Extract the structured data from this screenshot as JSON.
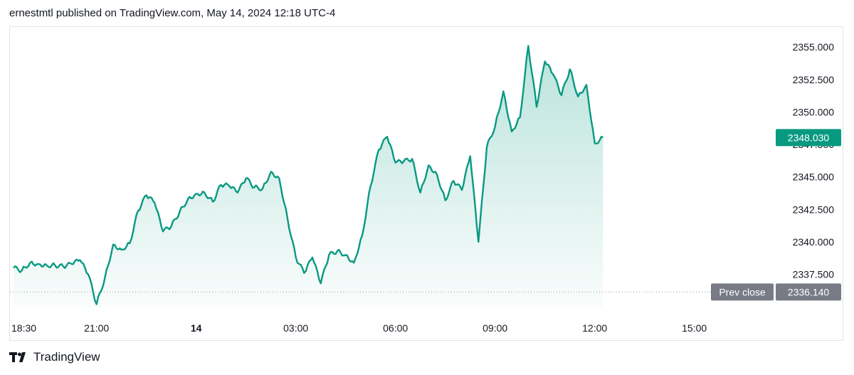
{
  "header": {
    "publisher_text": "ernestmtl published on TradingView.com, May 14, 2024 12:18 UTC-4"
  },
  "footer": {
    "brand_label": "TradingView"
  },
  "colors": {
    "line": "#089981",
    "fill_top": "#089981",
    "price_badge_bg": "#089981",
    "prev_close_bg": "#787b86",
    "grid_dotted": "#9598a1"
  },
  "chart_data": {
    "type": "area",
    "title": "",
    "xlabel": "",
    "ylabel": "",
    "x_ticks": [
      "18:30",
      "21:00",
      "14",
      "03:00",
      "06:00",
      "09:00",
      "12:00",
      "15:00"
    ],
    "y_ticks": [
      "2355.000",
      "2352.500",
      "2350.000",
      "2347.500",
      "2345.000",
      "2342.500",
      "2340.000",
      "2337.500"
    ],
    "ylim": [
      2334.9,
      2356.0
    ],
    "last_price": {
      "label": "2348.030",
      "value": 2348.03
    },
    "prev_close": {
      "label": "Prev close",
      "value_label": "2336.140",
      "value": 2336.14
    },
    "grid": false,
    "series": [
      {
        "points": [
          [
            "18:30",
            2338.0
          ],
          [
            "18:45",
            2337.8
          ],
          [
            "19:00",
            2338.4
          ],
          [
            "19:15",
            2338.3
          ],
          [
            "19:30",
            2338.2
          ],
          [
            "19:45",
            2338.2
          ],
          [
            "20:00",
            2338.1
          ],
          [
            "20:15",
            2338.3
          ],
          [
            "20:30",
            2338.6
          ],
          [
            "20:45",
            2337.5
          ],
          [
            "21:00",
            2335.2
          ],
          [
            "21:15",
            2337.2
          ],
          [
            "21:30",
            2339.8
          ],
          [
            "21:45",
            2339.4
          ],
          [
            "22:00",
            2339.9
          ],
          [
            "22:15",
            2342.4
          ],
          [
            "22:30",
            2343.6
          ],
          [
            "22:45",
            2343.0
          ],
          [
            "23:00",
            2340.8
          ],
          [
            "23:15",
            2341.2
          ],
          [
            "23:30",
            2342.3
          ],
          [
            "23:45",
            2343.3
          ],
          [
            "00:00",
            2343.7
          ],
          [
            "00:15",
            2343.8
          ],
          [
            "00:30",
            2343.1
          ],
          [
            "00:45",
            2344.4
          ],
          [
            "01:00",
            2344.3
          ],
          [
            "01:15",
            2343.8
          ],
          [
            "01:30",
            2344.9
          ],
          [
            "01:45",
            2344.2
          ],
          [
            "02:00",
            2344.1
          ],
          [
            "02:15",
            2345.4
          ],
          [
            "02:30",
            2344.9
          ],
          [
            "02:45",
            2341.8
          ],
          [
            "03:00",
            2338.8
          ],
          [
            "03:15",
            2337.6
          ],
          [
            "03:30",
            2338.8
          ],
          [
            "03:45",
            2336.8
          ],
          [
            "04:00",
            2339.0
          ],
          [
            "04:15",
            2339.3
          ],
          [
            "04:30",
            2339.0
          ],
          [
            "04:45",
            2338.4
          ],
          [
            "05:00",
            2340.5
          ],
          [
            "05:15",
            2344.3
          ],
          [
            "05:30",
            2347.1
          ],
          [
            "05:45",
            2348.1
          ],
          [
            "06:00",
            2346.1
          ],
          [
            "06:15",
            2346.2
          ],
          [
            "06:30",
            2346.4
          ],
          [
            "06:45",
            2343.8
          ],
          [
            "07:00",
            2345.9
          ],
          [
            "07:15",
            2345.2
          ],
          [
            "07:30",
            2343.2
          ],
          [
            "07:45",
            2344.7
          ],
          [
            "08:00",
            2344.0
          ],
          [
            "08:15",
            2346.6
          ],
          [
            "08:30",
            2340.0
          ],
          [
            "08:45",
            2347.3
          ],
          [
            "09:00",
            2348.9
          ],
          [
            "09:15",
            2351.6
          ],
          [
            "09:30",
            2348.5
          ],
          [
            "09:45",
            2349.6
          ],
          [
            "10:00",
            2355.1
          ],
          [
            "10:15",
            2350.4
          ],
          [
            "10:30",
            2353.9
          ],
          [
            "10:45",
            2352.9
          ],
          [
            "11:00",
            2351.3
          ],
          [
            "11:15",
            2353.3
          ],
          [
            "11:30",
            2351.2
          ],
          [
            "11:45",
            2352.1
          ],
          [
            "12:00",
            2347.6
          ],
          [
            "12:15",
            2348.03
          ]
        ]
      }
    ]
  }
}
